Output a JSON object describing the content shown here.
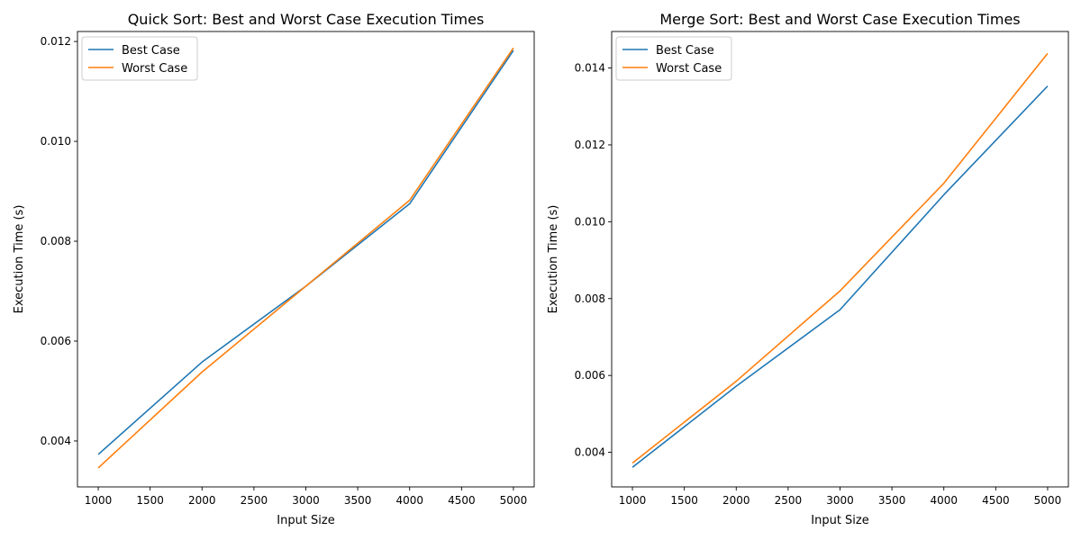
{
  "colors": {
    "best": "#1f77b4",
    "worst": "#ff7f0e"
  },
  "chart_data": [
    {
      "type": "line",
      "title": "Quick Sort: Best and Worst Case Execution Times",
      "xlabel": "Input Size",
      "ylabel": "Execution Time (s)",
      "xlim": [
        800,
        5200
      ],
      "ylim": [
        0.00308,
        0.0122
      ],
      "xticks": [
        1000,
        1500,
        2000,
        2500,
        3000,
        3500,
        4000,
        4500,
        5000
      ],
      "xtick_labels": [
        "1000",
        "1500",
        "2000",
        "2500",
        "3000",
        "3500",
        "4000",
        "4500",
        "5000"
      ],
      "yticks": [
        0.004,
        0.006,
        0.008,
        0.01,
        0.012
      ],
      "ytick_labels": [
        "0.004",
        "0.006",
        "0.008",
        "0.010",
        "0.012"
      ],
      "legend": "upper-left",
      "grid": false,
      "x": [
        1000,
        2000,
        3000,
        4000,
        5000
      ],
      "series": [
        {
          "name": "Best Case",
          "color": "#1f77b4",
          "values": [
            0.00373,
            0.00558,
            0.0071,
            0.00875,
            0.01182
          ]
        },
        {
          "name": "Worst Case",
          "color": "#ff7f0e",
          "values": [
            0.00346,
            0.00538,
            0.0071,
            0.00882,
            0.01187
          ]
        }
      ]
    },
    {
      "type": "line",
      "title": "Merge Sort: Best and Worst Case Execution Times",
      "xlabel": "Input Size",
      "ylabel": "Execution Time (s)",
      "xlim": [
        800,
        5200
      ],
      "ylim": [
        0.0031,
        0.01495
      ],
      "xticks": [
        1000,
        1500,
        2000,
        2500,
        3000,
        3500,
        4000,
        4500,
        5000
      ],
      "xtick_labels": [
        "1000",
        "1500",
        "2000",
        "2500",
        "3000",
        "3500",
        "4000",
        "4500",
        "5000"
      ],
      "yticks": [
        0.004,
        0.006,
        0.008,
        0.01,
        0.012,
        0.014
      ],
      "ytick_labels": [
        "0.004",
        "0.006",
        "0.008",
        "0.010",
        "0.012",
        "0.014"
      ],
      "legend": "upper-left",
      "grid": false,
      "x": [
        1000,
        2000,
        3000,
        4000,
        5000
      ],
      "series": [
        {
          "name": "Best Case",
          "color": "#1f77b4",
          "values": [
            0.00361,
            0.00572,
            0.00771,
            0.0107,
            0.01353
          ]
        },
        {
          "name": "Worst Case",
          "color": "#ff7f0e",
          "values": [
            0.00372,
            0.00585,
            0.0082,
            0.011,
            0.01438
          ]
        }
      ]
    }
  ]
}
